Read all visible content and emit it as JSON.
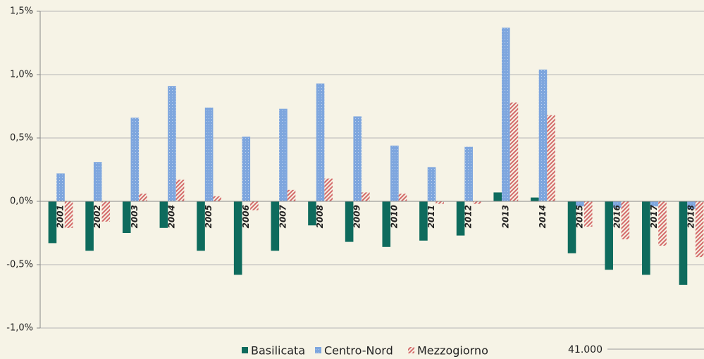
{
  "chart_data": {
    "type": "bar",
    "categories": [
      "2001",
      "2002",
      "2003",
      "2004",
      "2005",
      "2006",
      "2007",
      "2008",
      "2009",
      "2010",
      "2011",
      "2012",
      "2013",
      "2014",
      "2015",
      "2016",
      "2017",
      "2018"
    ],
    "series": [
      {
        "name": "Basilicata",
        "color": "#0e6b5d",
        "values": [
          -0.33,
          -0.39,
          -0.25,
          -0.21,
          -0.39,
          -0.58,
          -0.39,
          -0.19,
          -0.32,
          -0.36,
          -0.31,
          -0.27,
          0.07,
          0.03,
          -0.41,
          -0.54,
          -0.58,
          -0.66
        ]
      },
      {
        "name": "Centro-Nord",
        "color": "#7ea6de",
        "values": [
          0.22,
          0.31,
          0.66,
          0.91,
          0.74,
          0.51,
          0.73,
          0.93,
          0.67,
          0.44,
          0.27,
          0.43,
          1.37,
          1.04,
          -0.04,
          -0.05,
          -0.04,
          -0.06
        ]
      },
      {
        "name": "Mezzogiorno",
        "color": "#d46a6a",
        "values": [
          -0.21,
          -0.16,
          0.06,
          0.17,
          0.04,
          -0.07,
          0.09,
          0.18,
          0.07,
          0.06,
          -0.02,
          -0.02,
          0.78,
          0.68,
          -0.2,
          -0.3,
          -0.35,
          -0.44
        ]
      }
    ],
    "ylim": [
      -1.0,
      1.5
    ],
    "yticks": [
      {
        "value": -1.0,
        "label": "-1,0%"
      },
      {
        "value": -0.5,
        "label": "-0,5%"
      },
      {
        "value": 0,
        "label": "0,0%"
      },
      {
        "value": 0.5,
        "label": "0,5%"
      },
      {
        "value": 1.0,
        "label": "1,0%"
      },
      {
        "value": 1.5,
        "label": "1,5%"
      }
    ],
    "grid": true,
    "legend": "bottom",
    "annotations": [
      "41.000"
    ]
  }
}
